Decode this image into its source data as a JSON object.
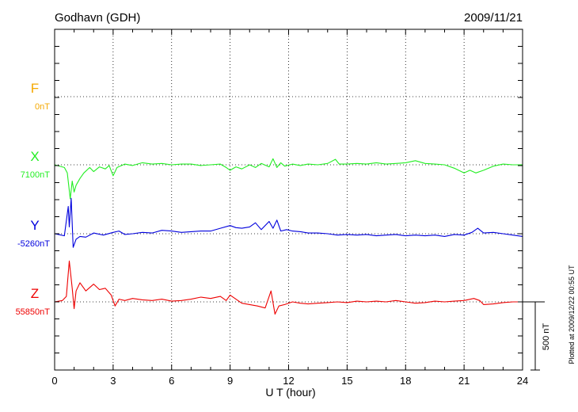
{
  "chart_data": {
    "type": "line",
    "title": "Godhavn (GDH)",
    "date": "2009/11/21",
    "xlabel": "U T (hour)",
    "xlim": [
      0,
      24
    ],
    "xticks": [
      0,
      3,
      6,
      9,
      12,
      15,
      18,
      21,
      24
    ],
    "xtick_labels": [
      "0",
      "3",
      "6",
      "9",
      "12",
      "15",
      "18",
      "21",
      "24"
    ],
    "scale_bar_label": "500 nT",
    "scale_bar_nT": 500,
    "plotted_note": "Plotted at 2009/12/22 00:55 UT",
    "grid": true,
    "series": [
      {
        "name": "F",
        "baseline_label": "0nT",
        "color": "#f5a800",
        "points": []
      },
      {
        "name": "X",
        "baseline_label": "7100nT",
        "color": "#22ee22",
        "points": [
          [
            0,
            0
          ],
          [
            0.5,
            -20
          ],
          [
            0.65,
            -60
          ],
          [
            0.8,
            -250
          ],
          [
            0.9,
            -120
          ],
          [
            1.0,
            -200
          ],
          [
            1.1,
            -150
          ],
          [
            1.3,
            -100
          ],
          [
            1.5,
            -60
          ],
          [
            1.8,
            -20
          ],
          [
            2.0,
            -50
          ],
          [
            2.3,
            -15
          ],
          [
            2.6,
            -30
          ],
          [
            2.8,
            -5
          ],
          [
            3.0,
            -80
          ],
          [
            3.2,
            -20
          ],
          [
            3.6,
            5
          ],
          [
            4.0,
            -5
          ],
          [
            4.5,
            15
          ],
          [
            5.0,
            5
          ],
          [
            5.5,
            10
          ],
          [
            6.0,
            0
          ],
          [
            6.5,
            5
          ],
          [
            7.0,
            5
          ],
          [
            7.5,
            -5
          ],
          [
            8.0,
            0
          ],
          [
            8.5,
            5
          ],
          [
            8.8,
            -20
          ],
          [
            9.0,
            -40
          ],
          [
            9.3,
            -15
          ],
          [
            9.6,
            -30
          ],
          [
            10.0,
            0
          ],
          [
            10.3,
            -20
          ],
          [
            10.6,
            10
          ],
          [
            11.0,
            -15
          ],
          [
            11.2,
            45
          ],
          [
            11.4,
            -20
          ],
          [
            11.6,
            15
          ],
          [
            11.8,
            -10
          ],
          [
            12.2,
            5
          ],
          [
            12.6,
            -5
          ],
          [
            13.0,
            5
          ],
          [
            13.5,
            0
          ],
          [
            14.0,
            10
          ],
          [
            14.4,
            40
          ],
          [
            14.6,
            5
          ],
          [
            15.0,
            5
          ],
          [
            15.5,
            10
          ],
          [
            16.0,
            5
          ],
          [
            16.5,
            15
          ],
          [
            17.0,
            5
          ],
          [
            17.5,
            10
          ],
          [
            18.0,
            15
          ],
          [
            18.5,
            30
          ],
          [
            19.0,
            10
          ],
          [
            19.5,
            5
          ],
          [
            20.0,
            0
          ],
          [
            20.5,
            -25
          ],
          [
            21.0,
            -60
          ],
          [
            21.3,
            -40
          ],
          [
            21.6,
            -60
          ],
          [
            22.0,
            -40
          ],
          [
            22.5,
            -10
          ],
          [
            23.0,
            5
          ],
          [
            23.5,
            0
          ],
          [
            24.0,
            0
          ]
        ]
      },
      {
        "name": "Y",
        "baseline_label": "-5260nT",
        "color": "#0000dd",
        "points": [
          [
            0,
            0
          ],
          [
            0.5,
            -15
          ],
          [
            0.7,
            200
          ],
          [
            0.75,
            50
          ],
          [
            0.85,
            260
          ],
          [
            0.95,
            -100
          ],
          [
            1.1,
            -40
          ],
          [
            1.3,
            -20
          ],
          [
            1.6,
            -25
          ],
          [
            2.0,
            5
          ],
          [
            2.5,
            -10
          ],
          [
            3.0,
            10
          ],
          [
            3.3,
            20
          ],
          [
            3.6,
            -5
          ],
          [
            4.0,
            0
          ],
          [
            4.5,
            10
          ],
          [
            5.0,
            5
          ],
          [
            5.5,
            25
          ],
          [
            6.0,
            20
          ],
          [
            6.5,
            10
          ],
          [
            7.0,
            15
          ],
          [
            7.5,
            20
          ],
          [
            8.0,
            20
          ],
          [
            8.5,
            40
          ],
          [
            9.0,
            60
          ],
          [
            9.3,
            45
          ],
          [
            9.6,
            40
          ],
          [
            10.0,
            50
          ],
          [
            10.3,
            80
          ],
          [
            10.6,
            30
          ],
          [
            11.0,
            90
          ],
          [
            11.2,
            40
          ],
          [
            11.4,
            100
          ],
          [
            11.6,
            20
          ],
          [
            11.9,
            30
          ],
          [
            12.2,
            20
          ],
          [
            12.6,
            15
          ],
          [
            13.0,
            5
          ],
          [
            13.5,
            5
          ],
          [
            14.0,
            0
          ],
          [
            14.5,
            -10
          ],
          [
            15.0,
            -5
          ],
          [
            15.5,
            -10
          ],
          [
            16.0,
            -5
          ],
          [
            16.5,
            -15
          ],
          [
            17.0,
            -10
          ],
          [
            17.5,
            -5
          ],
          [
            18.0,
            -15
          ],
          [
            18.5,
            -10
          ],
          [
            19.0,
            -15
          ],
          [
            19.5,
            -10
          ],
          [
            20.0,
            -20
          ],
          [
            20.5,
            -5
          ],
          [
            21.0,
            -10
          ],
          [
            21.4,
            10
          ],
          [
            21.7,
            40
          ],
          [
            22.0,
            5
          ],
          [
            22.5,
            10
          ],
          [
            23.0,
            0
          ],
          [
            23.5,
            -10
          ],
          [
            24.0,
            -20
          ]
        ]
      },
      {
        "name": "Z",
        "baseline_label": "55850nT",
        "color": "#ee0000",
        "points": [
          [
            0,
            0
          ],
          [
            0.4,
            10
          ],
          [
            0.6,
            40
          ],
          [
            0.75,
            300
          ],
          [
            0.9,
            100
          ],
          [
            1.0,
            -50
          ],
          [
            1.1,
            80
          ],
          [
            1.3,
            140
          ],
          [
            1.6,
            80
          ],
          [
            2.0,
            130
          ],
          [
            2.3,
            90
          ],
          [
            2.6,
            100
          ],
          [
            2.9,
            50
          ],
          [
            3.1,
            -30
          ],
          [
            3.3,
            20
          ],
          [
            3.6,
            10
          ],
          [
            4.0,
            25
          ],
          [
            4.5,
            15
          ],
          [
            5.0,
            10
          ],
          [
            5.5,
            20
          ],
          [
            6.0,
            5
          ],
          [
            6.5,
            10
          ],
          [
            7.0,
            20
          ],
          [
            7.5,
            35
          ],
          [
            8.0,
            25
          ],
          [
            8.5,
            40
          ],
          [
            8.8,
            10
          ],
          [
            9.0,
            50
          ],
          [
            9.3,
            20
          ],
          [
            9.6,
            -10
          ],
          [
            10.0,
            -20
          ],
          [
            10.4,
            -30
          ],
          [
            10.8,
            -45
          ],
          [
            11.1,
            80
          ],
          [
            11.3,
            -90
          ],
          [
            11.5,
            -30
          ],
          [
            11.8,
            -20
          ],
          [
            12.2,
            0
          ],
          [
            12.6,
            -10
          ],
          [
            13.0,
            -15
          ],
          [
            13.5,
            -10
          ],
          [
            14.0,
            -5
          ],
          [
            14.5,
            0
          ],
          [
            15.0,
            -5
          ],
          [
            15.5,
            5
          ],
          [
            16.0,
            0
          ],
          [
            16.5,
            5
          ],
          [
            17.0,
            0
          ],
          [
            17.5,
            10
          ],
          [
            18.0,
            0
          ],
          [
            18.5,
            -10
          ],
          [
            19.0,
            -5
          ],
          [
            19.5,
            5
          ],
          [
            20.0,
            0
          ],
          [
            20.5,
            5
          ],
          [
            21.0,
            10
          ],
          [
            21.5,
            25
          ],
          [
            21.8,
            10
          ],
          [
            22.0,
            -20
          ],
          [
            22.5,
            -15
          ],
          [
            23.0,
            -5
          ],
          [
            23.5,
            0
          ],
          [
            24.0,
            0
          ]
        ]
      }
    ]
  }
}
